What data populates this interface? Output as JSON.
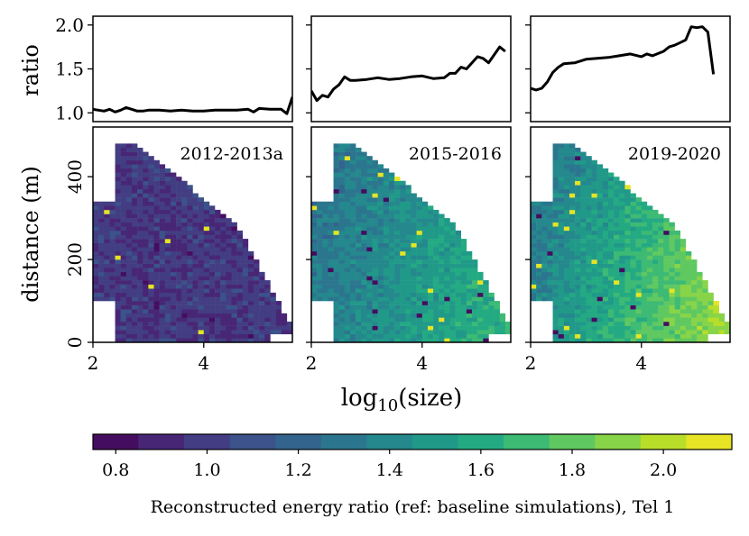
{
  "chart_data": {
    "type": "heatmap",
    "shared_x": {
      "label_base": "log",
      "label_sub": "10",
      "label_rest": "(size)",
      "xlim": [
        2,
        5.6
      ],
      "ticks": [
        2,
        4
      ],
      "tick_labels": [
        "2",
        "4"
      ]
    },
    "ratio_axis": {
      "label": "ratio",
      "ylim": [
        0.9,
        2.1
      ],
      "ticks": [
        1.0,
        1.5,
        2.0
      ],
      "tick_labels": [
        "1.0",
        "1.5",
        "2.0"
      ]
    },
    "distance_axis": {
      "label": "distance (m)",
      "ylim": [
        0,
        520
      ],
      "ticks": [
        0,
        200,
        400
      ],
      "tick_labels": [
        "0",
        "200",
        "400"
      ]
    },
    "panels": [
      {
        "name": "2012-2013a",
        "ratio_line": {
          "x": [
            2.0,
            2.1,
            2.2,
            2.3,
            2.4,
            2.5,
            2.6,
            2.7,
            2.8,
            2.9,
            3.0,
            3.2,
            3.4,
            3.6,
            3.8,
            4.0,
            4.2,
            4.4,
            4.6,
            4.8,
            4.9,
            5.0,
            5.2,
            5.4,
            5.5,
            5.6
          ],
          "y": [
            1.04,
            1.03,
            1.02,
            1.04,
            1.01,
            1.03,
            1.06,
            1.04,
            1.02,
            1.02,
            1.03,
            1.03,
            1.02,
            1.03,
            1.02,
            1.02,
            1.03,
            1.03,
            1.03,
            1.04,
            1.01,
            1.05,
            1.04,
            1.04,
            0.99,
            1.18
          ]
        },
        "heatmap_mean": 0.98,
        "heatmap_size_trend": 0.0
      },
      {
        "name": "2015-2016",
        "ratio_line": {
          "x": [
            2.0,
            2.1,
            2.2,
            2.3,
            2.4,
            2.5,
            2.6,
            2.7,
            2.8,
            3.0,
            3.2,
            3.4,
            3.6,
            3.8,
            4.0,
            4.2,
            4.4,
            4.5,
            4.6,
            4.7,
            4.8,
            4.9,
            5.0,
            5.1,
            5.2,
            5.3,
            5.4,
            5.5
          ],
          "y": [
            1.25,
            1.14,
            1.2,
            1.18,
            1.27,
            1.32,
            1.41,
            1.37,
            1.37,
            1.38,
            1.4,
            1.38,
            1.39,
            1.41,
            1.42,
            1.39,
            1.4,
            1.45,
            1.45,
            1.52,
            1.5,
            1.57,
            1.64,
            1.62,
            1.57,
            1.66,
            1.75,
            1.7
          ]
        },
        "heatmap_mean": 1.45,
        "heatmap_size_trend": 0.18
      },
      {
        "name": "2019-2020",
        "ratio_line": {
          "x": [
            2.0,
            2.1,
            2.2,
            2.3,
            2.4,
            2.5,
            2.6,
            2.8,
            3.0,
            3.2,
            3.4,
            3.6,
            3.8,
            4.0,
            4.1,
            4.2,
            4.4,
            4.5,
            4.6,
            4.7,
            4.8,
            4.9,
            5.0,
            5.1,
            5.2,
            5.3
          ],
          "y": [
            1.28,
            1.26,
            1.28,
            1.35,
            1.46,
            1.52,
            1.56,
            1.57,
            1.61,
            1.62,
            1.63,
            1.65,
            1.67,
            1.64,
            1.67,
            1.65,
            1.7,
            1.75,
            1.77,
            1.8,
            1.83,
            1.98,
            1.97,
            1.98,
            1.92,
            1.44
          ]
        },
        "heatmap_mean": 1.6,
        "heatmap_size_trend": 0.32
      }
    ],
    "colorbar": {
      "label": "Reconstructed energy ratio (ref: baseline simulations), Tel 1",
      "range": [
        0.75,
        2.15
      ],
      "n_bins": 14,
      "ticks": [
        0.8,
        1.0,
        1.2,
        1.4,
        1.6,
        1.8,
        2.0
      ],
      "tick_labels": [
        "0.8",
        "1.0",
        "1.2",
        "1.4",
        "1.6",
        "1.8",
        "2.0"
      ],
      "colormap": "viridis"
    }
  }
}
